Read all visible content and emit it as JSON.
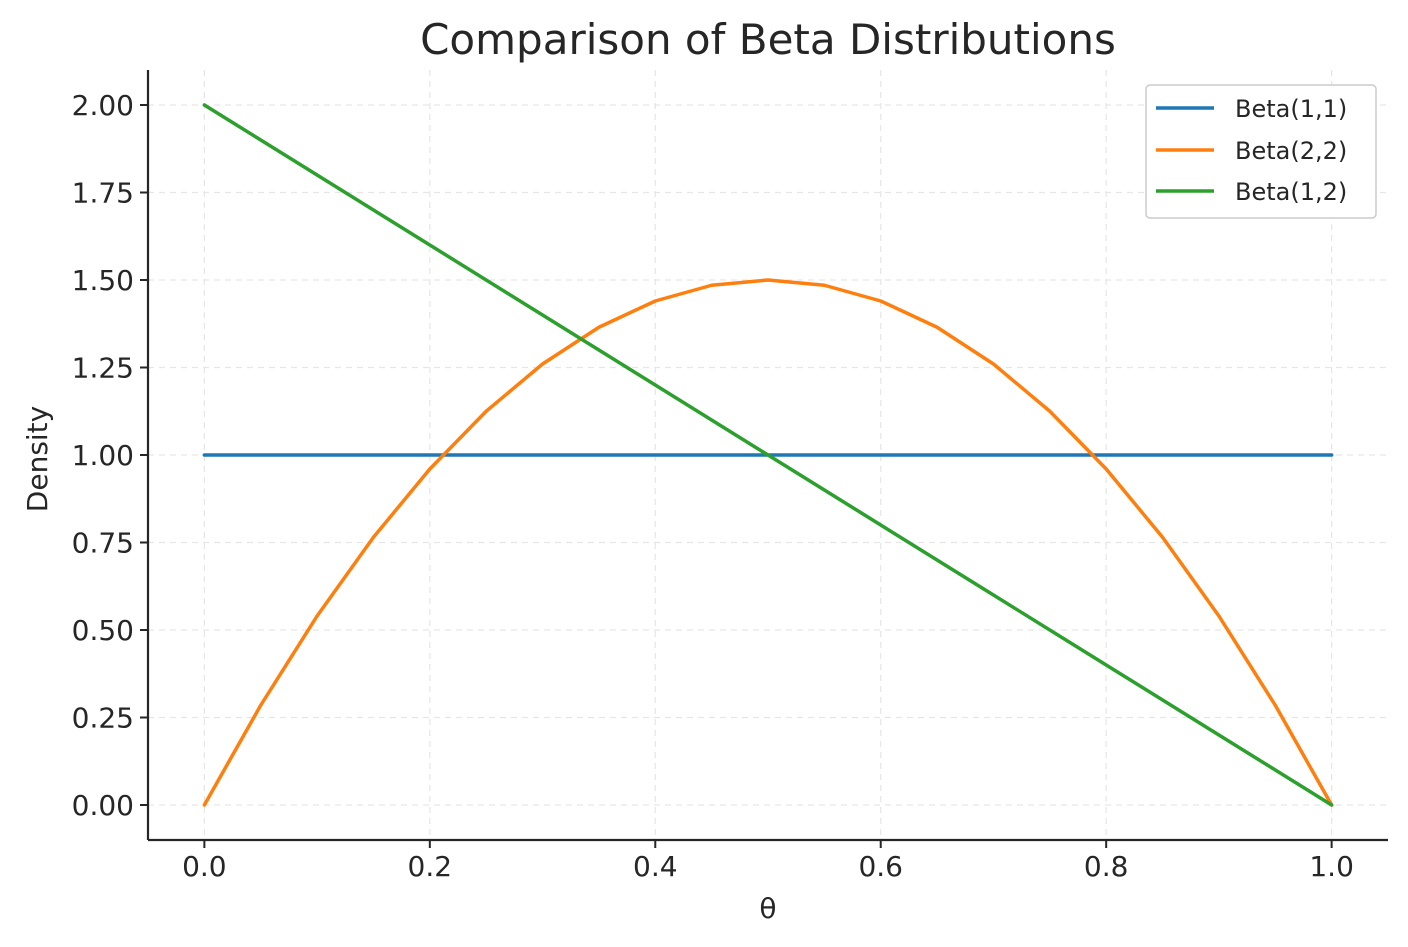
{
  "chart_data": {
    "type": "line",
    "title": "Comparison of Beta Distributions",
    "xlabel": "θ",
    "ylabel": "Density",
    "xlim": [
      -0.05,
      1.05
    ],
    "ylim": [
      -0.1,
      2.1
    ],
    "xticks": [
      0.0,
      0.2,
      0.4,
      0.6,
      0.8,
      1.0
    ],
    "xtick_labels": [
      "0.0",
      "0.2",
      "0.4",
      "0.6",
      "0.8",
      "1.0"
    ],
    "yticks": [
      0.0,
      0.25,
      0.5,
      0.75,
      1.0,
      1.25,
      1.5,
      1.75,
      2.0
    ],
    "ytick_labels": [
      "0.00",
      "0.25",
      "0.50",
      "0.75",
      "1.00",
      "1.25",
      "1.50",
      "1.75",
      "2.00"
    ],
    "grid": true,
    "legend_position": "top-right",
    "series": [
      {
        "name": "Beta(1,1)",
        "color": "#1f77b4",
        "x": [
          0.0,
          0.1,
          0.2,
          0.3,
          0.4,
          0.5,
          0.6,
          0.7,
          0.8,
          0.9,
          1.0
        ],
        "y": [
          1.0,
          1.0,
          1.0,
          1.0,
          1.0,
          1.0,
          1.0,
          1.0,
          1.0,
          1.0,
          1.0
        ]
      },
      {
        "name": "Beta(2,2)",
        "color": "#ff7f0e",
        "x": [
          0.0,
          0.05,
          0.1,
          0.15,
          0.2,
          0.25,
          0.3,
          0.35,
          0.4,
          0.45,
          0.5,
          0.55,
          0.6,
          0.65,
          0.7,
          0.75,
          0.8,
          0.85,
          0.9,
          0.95,
          1.0
        ],
        "y": [
          0.0,
          0.285,
          0.54,
          0.765,
          0.96,
          1.125,
          1.26,
          1.365,
          1.44,
          1.485,
          1.5,
          1.485,
          1.44,
          1.365,
          1.26,
          1.125,
          0.96,
          0.765,
          0.54,
          0.285,
          0.0
        ]
      },
      {
        "name": "Beta(1,2)",
        "color": "#2ca02c",
        "x": [
          0.0,
          0.1,
          0.2,
          0.3,
          0.4,
          0.5,
          0.6,
          0.7,
          0.8,
          0.9,
          1.0
        ],
        "y": [
          2.0,
          1.8,
          1.6,
          1.4,
          1.2,
          1.0,
          0.8,
          0.6,
          0.4,
          0.2,
          0.0
        ]
      }
    ]
  }
}
